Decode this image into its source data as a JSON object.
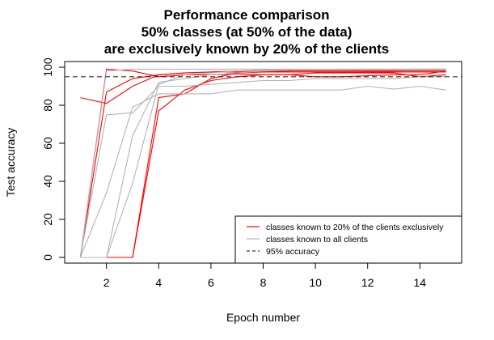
{
  "chart_data": {
    "type": "line",
    "title": "Performance comparison\n50% classes (at 50% of the data)\nare exclusively known by 20% of the clients",
    "xlabel": "Epoch number",
    "ylabel": "Test accuracy",
    "xlim": [
      0.4,
      15.6
    ],
    "ylim": [
      -3,
      103
    ],
    "xticks": [
      2,
      4,
      6,
      8,
      10,
      12,
      14
    ],
    "yticks": [
      0,
      20,
      40,
      60,
      80,
      100
    ],
    "grid": false,
    "legend_position": "bottom-right",
    "reference_line": {
      "y": 95,
      "style": "dashed",
      "label": "95% accuracy",
      "color": "#333333"
    },
    "series": [
      {
        "name": "classes known to 20% of the clients exclusively",
        "color": "#ff0000",
        "x": [
          1,
          2,
          3,
          4,
          5,
          6,
          7,
          8,
          9,
          10,
          11,
          12,
          13,
          14,
          15
        ],
        "y": [
          84,
          81,
          90,
          96,
          97,
          97.5,
          98,
          98,
          98,
          98.5,
          98.5,
          98,
          98,
          99,
          99
        ]
      },
      {
        "name": "classes known to 20% of the clients exclusively",
        "color": "#ff0000",
        "x": [
          1,
          2,
          3,
          4,
          5,
          6,
          7,
          8,
          9,
          10,
          11,
          12,
          13,
          14,
          15
        ],
        "y": [
          0,
          99,
          98,
          95,
          96,
          96,
          96.5,
          96,
          96,
          95,
          95,
          95.5,
          96,
          96,
          98
        ]
      },
      {
        "name": "classes known to 20% of the clients exclusively",
        "color": "#ff0000",
        "x": [
          1,
          2,
          3,
          4,
          5,
          6,
          7,
          8,
          9,
          10,
          11,
          12,
          13,
          14,
          15
        ],
        "y": [
          0,
          0,
          0,
          77,
          88,
          93,
          95,
          96,
          96,
          97,
          97,
          97,
          97,
          95,
          96
        ]
      },
      {
        "name": "classes known to 20% of the clients exclusively",
        "color": "#ff0000",
        "x": [
          1,
          2,
          3,
          4,
          5,
          6,
          7,
          8,
          9,
          10,
          11,
          12,
          13,
          14,
          15
        ],
        "y": [
          0,
          0,
          0,
          84,
          86,
          94,
          97,
          97.5,
          98,
          98,
          98,
          98,
          98,
          98,
          98
        ]
      },
      {
        "name": "classes known to 20% of the clients exclusively",
        "color": "#ff0000",
        "x": [
          1,
          2,
          3,
          4,
          5,
          6,
          7,
          8,
          9,
          10,
          11,
          12,
          13,
          14,
          15
        ],
        "y": [
          0,
          87,
          94,
          96,
          97,
          97.5,
          97.5,
          97.5,
          97.5,
          97.5,
          97.5,
          97.5,
          97.5,
          97.5,
          97.5
        ]
      },
      {
        "name": "classes known to all clients",
        "color": "#b4b4b4",
        "x": [
          1,
          2,
          3,
          4,
          5,
          6,
          7,
          8,
          9,
          10,
          11,
          12,
          13,
          14,
          15
        ],
        "y": [
          0,
          75,
          76,
          90,
          90,
          91,
          92,
          93,
          93,
          94,
          94,
          94,
          94,
          95,
          95
        ]
      },
      {
        "name": "classes known to all clients",
        "color": "#b4b4b4",
        "x": [
          1,
          2,
          3,
          4,
          5,
          6,
          7,
          8,
          9,
          10,
          11,
          12,
          13,
          14,
          15
        ],
        "y": [
          0,
          34,
          79,
          86,
          86,
          86,
          88,
          88,
          88,
          88,
          88,
          90,
          88.5,
          90,
          88
        ]
      },
      {
        "name": "classes known to all clients",
        "color": "#b4b4b4",
        "x": [
          1,
          2,
          3,
          4,
          5,
          6,
          7,
          8,
          9,
          10,
          11,
          12,
          13,
          14,
          15
        ],
        "y": [
          0,
          0,
          64,
          92,
          94,
          96,
          97,
          98,
          98.5,
          98.5,
          99,
          99,
          99,
          99,
          99
        ]
      },
      {
        "name": "classes known to all clients",
        "color": "#b4b4b4",
        "x": [
          1,
          2,
          3,
          4,
          5,
          6,
          7,
          8,
          9,
          10,
          11,
          12,
          13,
          14,
          15
        ],
        "y": [
          0,
          0,
          39,
          91,
          96,
          97,
          98,
          98.5,
          98.5,
          98.5,
          98.5,
          98.5,
          98.5,
          98.5,
          98.5
        ]
      },
      {
        "name": "classes known to all clients",
        "color": "#b4b4b4",
        "x": [
          1,
          2,
          3,
          4,
          5,
          6,
          7,
          8,
          9,
          10,
          11,
          12,
          13,
          14,
          15
        ],
        "y": [
          0,
          98,
          99,
          99,
          99,
          99,
          99,
          99,
          99,
          99,
          99,
          99,
          99,
          99,
          99
        ]
      }
    ],
    "legend": [
      {
        "label": "classes known to 20% of the clients exclusively",
        "color": "#ff0000",
        "style": "solid"
      },
      {
        "label": "classes known to all clients",
        "color": "#b4b4b4",
        "style": "solid"
      },
      {
        "label": "95% accuracy",
        "color": "#333333",
        "style": "dashed"
      }
    ]
  }
}
